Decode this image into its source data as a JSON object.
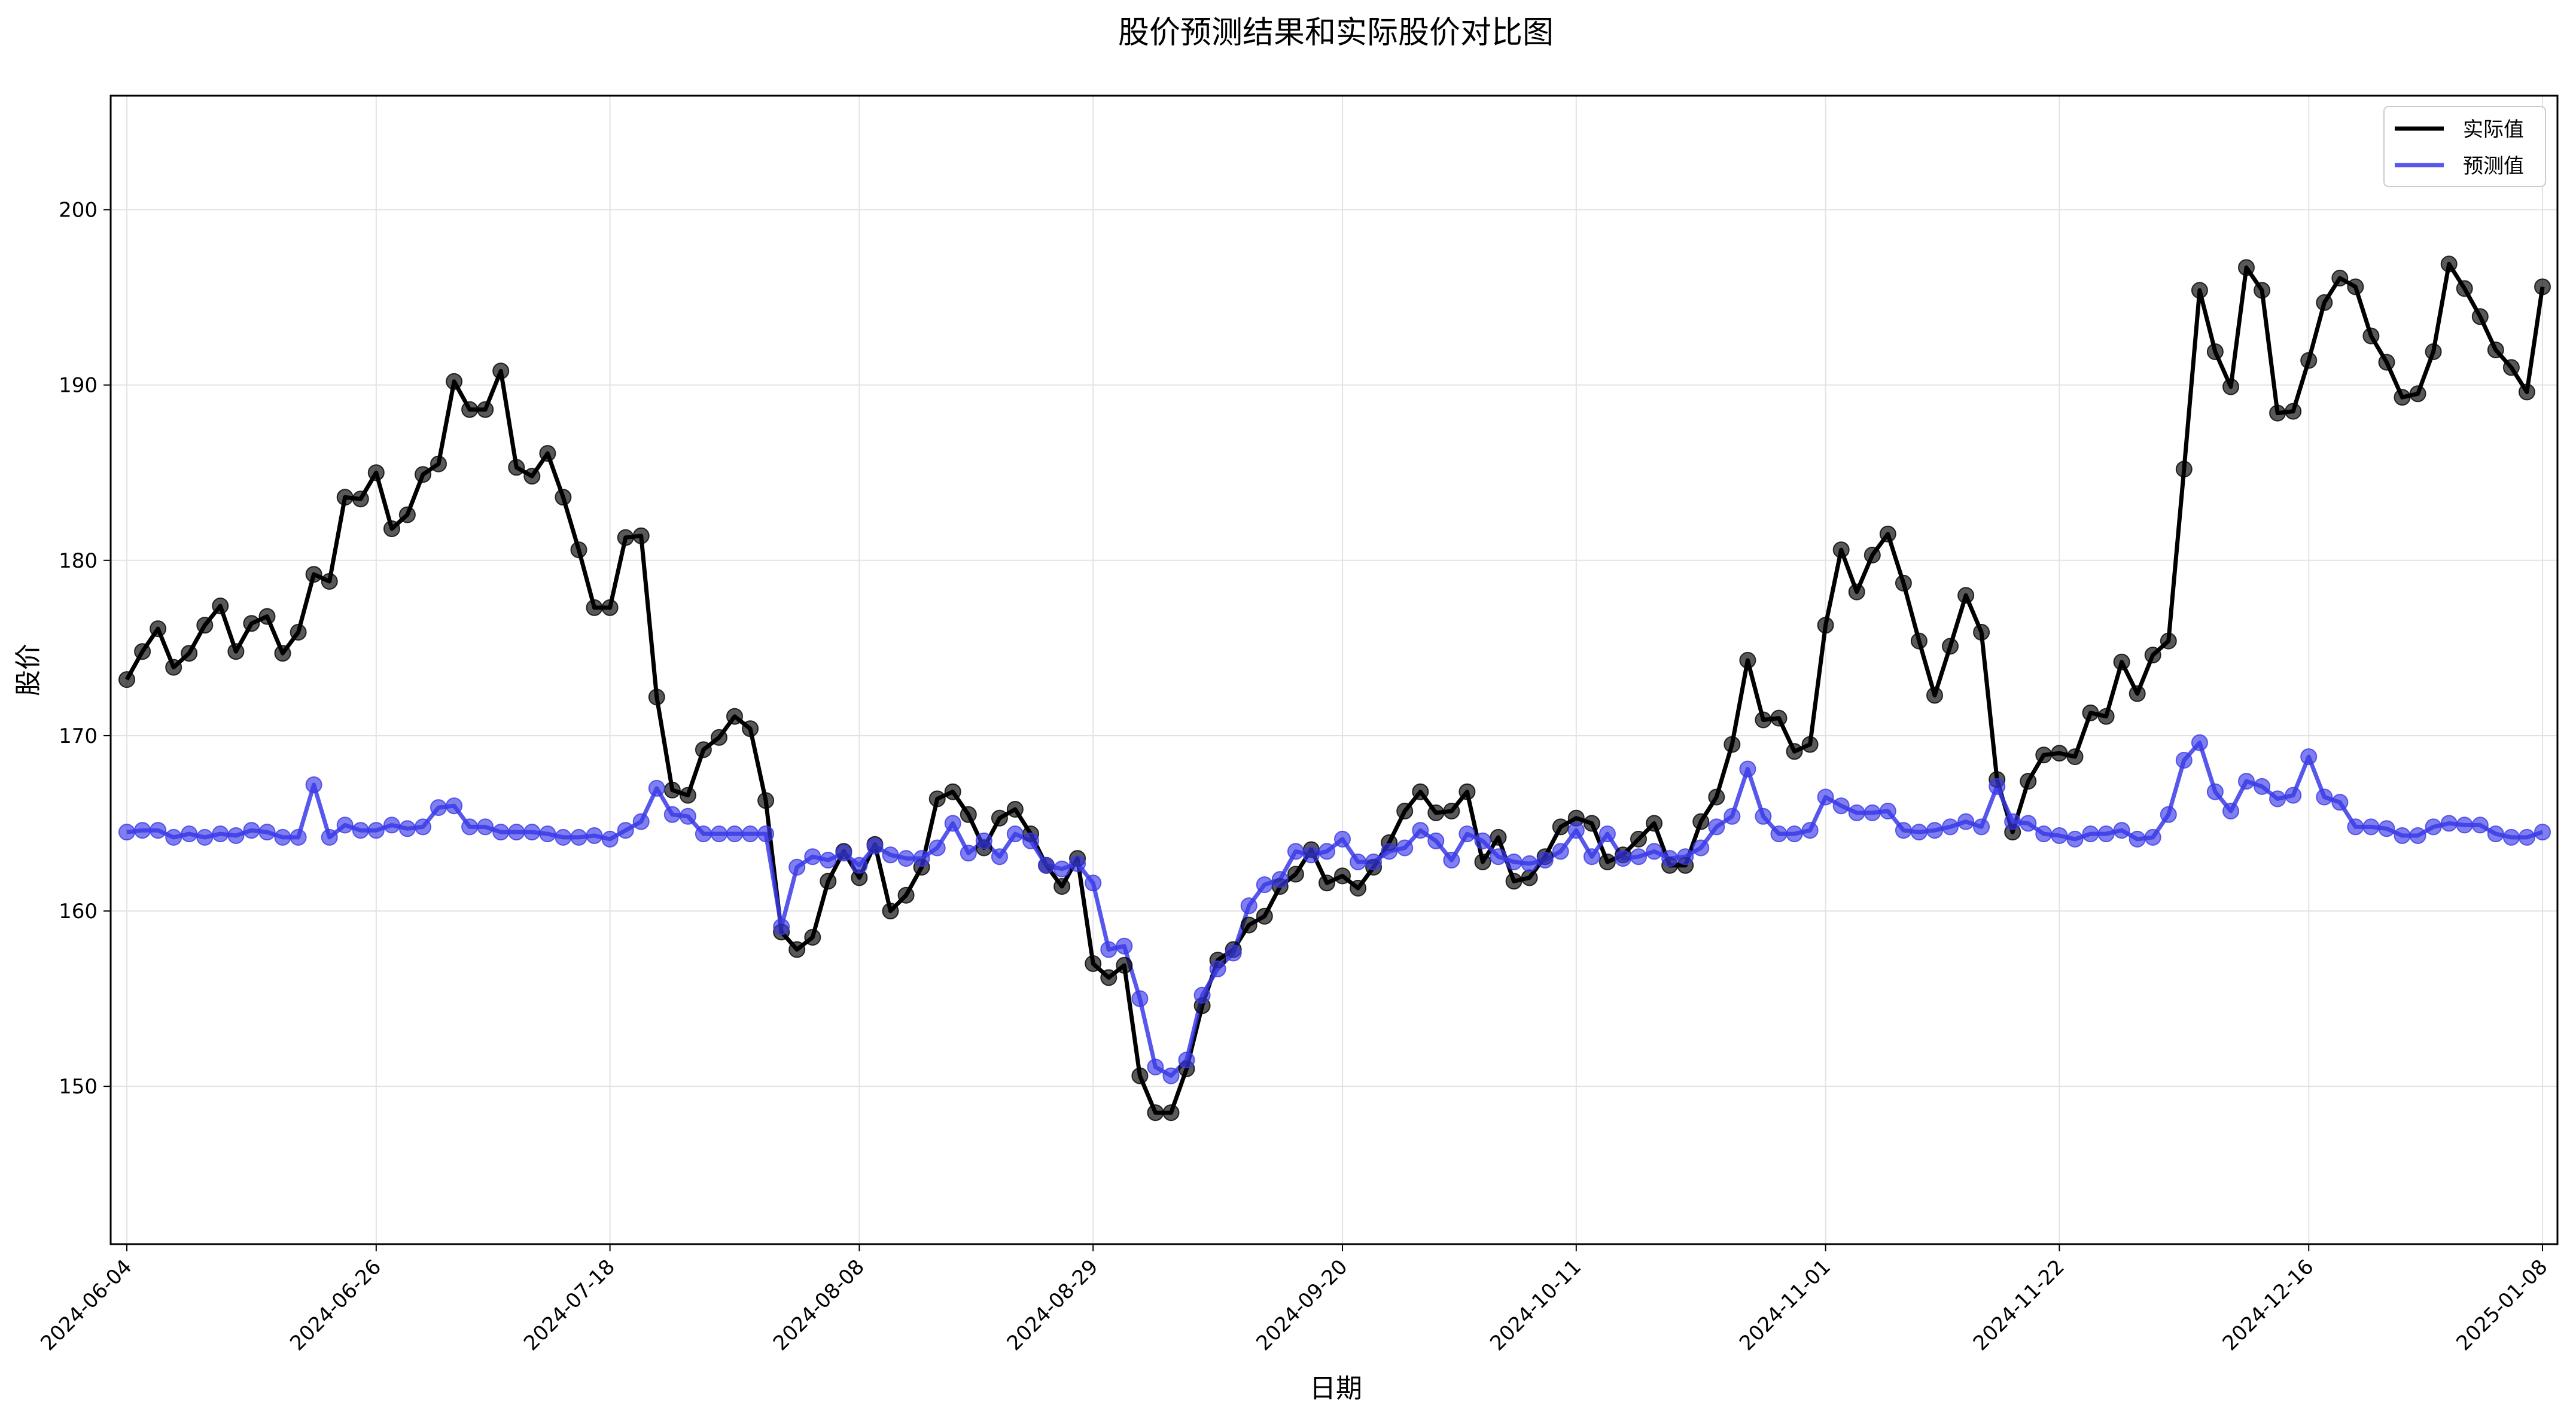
{
  "chart_data": {
    "type": "line",
    "title": "股价预测结果和实际股价对比图",
    "xlabel": "日期",
    "ylabel": "股价",
    "ylim": [
      141,
      206.5
    ],
    "yticks": [
      150,
      160,
      170,
      180,
      190,
      200
    ],
    "xticks": [
      "2024-06-04",
      "2024-06-26",
      "2024-07-18",
      "2024-08-08",
      "2024-08-29",
      "2024-09-20",
      "2024-10-11",
      "2024-11-01",
      "2024-11-22",
      "2024-12-16",
      "2025-01-08"
    ],
    "grid": true,
    "legend_position": "top-right",
    "series": [
      {
        "name": "实际值",
        "color": "#000000",
        "values": [
          173.2,
          174.8,
          176.1,
          173.9,
          174.7,
          176.3,
          177.4,
          174.8,
          176.4,
          176.8,
          174.7,
          175.9,
          179.2,
          178.8,
          183.6,
          183.5,
          185.0,
          181.8,
          182.6,
          184.9,
          185.5,
          190.2,
          188.6,
          188.6,
          190.8,
          185.3,
          184.8,
          186.1,
          183.6,
          180.6,
          177.3,
          177.3,
          181.3,
          181.4,
          172.2,
          166.9,
          166.6,
          169.2,
          169.9,
          171.1,
          170.4,
          166.3,
          158.8,
          157.8,
          158.5,
          161.7,
          163.4,
          161.9,
          163.8,
          160.0,
          160.9,
          162.5,
          166.4,
          166.8,
          165.5,
          163.6,
          165.3,
          165.8,
          164.4,
          162.6,
          161.4,
          163.0,
          157.0,
          156.2,
          156.9,
          150.6,
          148.5,
          148.5,
          151.0,
          154.6,
          157.2,
          157.8,
          159.2,
          159.7,
          161.4,
          162.1,
          163.5,
          161.6,
          162.0,
          161.3,
          162.5,
          163.9,
          165.7,
          166.8,
          165.6,
          165.7,
          166.8,
          162.8,
          164.2,
          161.7,
          161.9,
          163.1,
          164.8,
          165.3,
          165.0,
          162.8,
          163.2,
          164.1,
          165.0,
          162.6,
          162.6,
          165.1,
          166.5,
          169.5,
          174.3,
          170.9,
          171.0,
          169.1,
          169.5,
          176.3,
          180.6,
          178.2,
          180.3,
          181.5,
          178.7,
          175.4,
          172.3,
          175.1,
          178.0,
          175.9,
          167.5,
          164.5,
          167.4,
          168.9,
          169.0,
          168.8,
          171.3,
          171.1,
          174.2,
          172.4,
          174.6,
          175.4,
          185.2,
          195.4,
          191.9,
          189.9,
          196.7,
          195.4,
          188.4,
          188.5,
          191.4,
          194.7,
          196.1,
          195.6,
          192.8,
          191.3,
          189.3,
          189.5,
          191.9,
          196.9,
          195.5,
          193.9,
          192.0,
          191.0,
          189.6,
          195.6
        ]
      },
      {
        "name": "预测值",
        "color": "#3a3ae8",
        "values": [
          164.5,
          164.6,
          164.6,
          164.2,
          164.4,
          164.2,
          164.4,
          164.3,
          164.6,
          164.5,
          164.2,
          164.2,
          167.2,
          164.2,
          164.9,
          164.6,
          164.6,
          164.9,
          164.7,
          164.8,
          165.9,
          166.0,
          164.8,
          164.8,
          164.5,
          164.5,
          164.5,
          164.4,
          164.2,
          164.2,
          164.3,
          164.1,
          164.6,
          165.1,
          167.0,
          165.5,
          165.4,
          164.4,
          164.4,
          164.4,
          164.4,
          164.4,
          159.1,
          162.5,
          163.1,
          162.9,
          163.3,
          162.6,
          163.7,
          163.2,
          163.0,
          163.0,
          163.6,
          165.0,
          163.3,
          164.0,
          163.1,
          164.4,
          164.0,
          162.6,
          162.4,
          162.7,
          161.6,
          157.8,
          158.0,
          155.0,
          151.1,
          150.6,
          151.5,
          155.2,
          156.7,
          157.6,
          160.3,
          161.5,
          161.8,
          163.4,
          163.2,
          163.4,
          164.1,
          162.8,
          162.8,
          163.4,
          163.6,
          164.6,
          164.0,
          162.9,
          164.4,
          164.0,
          163.1,
          162.8,
          162.7,
          162.9,
          163.4,
          164.6,
          163.1,
          164.4,
          163.0,
          163.1,
          163.4,
          163.0,
          163.1,
          163.6,
          164.8,
          165.4,
          168.1,
          165.4,
          164.4,
          164.4,
          164.6,
          166.5,
          166.0,
          165.6,
          165.6,
          165.7,
          164.6,
          164.5,
          164.6,
          164.8,
          165.1,
          164.8,
          167.1,
          165.1,
          165.0,
          164.4,
          164.3,
          164.1,
          164.4,
          164.4,
          164.6,
          164.1,
          164.2,
          165.5,
          168.6,
          169.6,
          166.8,
          165.7,
          167.4,
          167.1,
          166.4,
          166.6,
          168.8,
          166.5,
          166.2,
          164.8,
          164.8,
          164.7,
          164.3,
          164.3,
          164.8,
          165.0,
          164.9,
          164.9,
          164.4,
          164.2,
          164.2,
          164.5
        ]
      }
    ]
  }
}
